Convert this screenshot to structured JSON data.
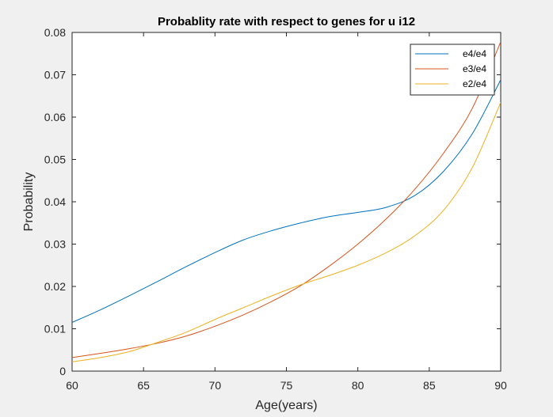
{
  "chart_data": {
    "type": "line",
    "title": "Probablity rate with respect to genes for u i12",
    "xlabel": "Age(years)",
    "ylabel": "Probability",
    "xlim": [
      60,
      90
    ],
    "ylim": [
      0,
      0.08
    ],
    "xticks": [
      60,
      65,
      70,
      75,
      80,
      85,
      90
    ],
    "yticks": [
      0,
      0.01,
      0.02,
      0.03,
      0.04,
      0.05,
      0.06,
      0.07,
      0.08
    ],
    "xtick_labels": [
      "60",
      "65",
      "70",
      "75",
      "80",
      "85",
      "90"
    ],
    "ytick_labels": [
      "0",
      "0.01",
      "0.02",
      "0.03",
      "0.04",
      "0.05",
      "0.06",
      "0.07",
      "0.08"
    ],
    "grid": false,
    "legend_position": "top-right",
    "x": [
      60,
      62,
      64,
      66,
      68,
      70,
      72,
      74,
      76,
      78,
      80,
      82,
      84,
      86,
      88,
      90
    ],
    "series": [
      {
        "name": "e4/e4",
        "color": "#0072BD",
        "values": [
          0.0115,
          0.0145,
          0.0178,
          0.0212,
          0.0247,
          0.028,
          0.031,
          0.0332,
          0.035,
          0.0365,
          0.0375,
          0.0387,
          0.0415,
          0.0472,
          0.056,
          0.0688
        ]
      },
      {
        "name": "e3/e4",
        "color": "#D95319",
        "values": [
          0.0032,
          0.0042,
          0.0053,
          0.0066,
          0.0083,
          0.0106,
          0.0133,
          0.0165,
          0.0202,
          0.0248,
          0.03,
          0.036,
          0.043,
          0.0515,
          0.062,
          0.0778
        ]
      },
      {
        "name": "e2/e4",
        "color": "#EDB120",
        "values": [
          0.0022,
          0.0032,
          0.0046,
          0.0068,
          0.0092,
          0.0122,
          0.015,
          0.0178,
          0.0204,
          0.0226,
          0.025,
          0.028,
          0.032,
          0.038,
          0.048,
          0.0635
        ]
      }
    ]
  }
}
